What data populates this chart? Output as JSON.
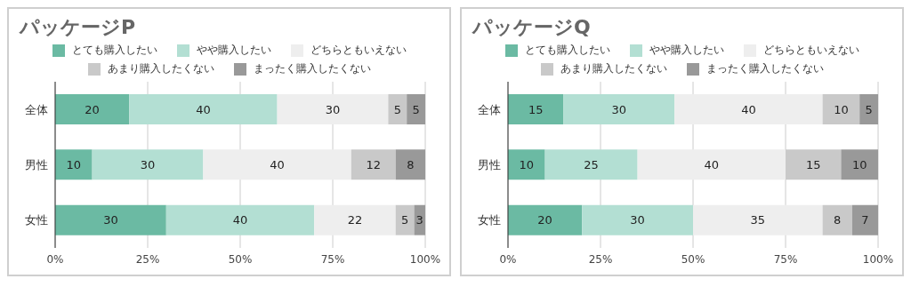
{
  "chart_data": [
    {
      "type": "bar",
      "title": "パッケージP",
      "orientation": "horizontal",
      "stacked": true,
      "categories": [
        "全体",
        "男性",
        "女性"
      ],
      "series": [
        {
          "name": "とても購入したい",
          "color": "#6bbaa3",
          "values": [
            20,
            10,
            30
          ]
        },
        {
          "name": "やや購入したい",
          "color": "#b3dfd3",
          "values": [
            40,
            30,
            40
          ]
        },
        {
          "name": "どちらともいえない",
          "color": "#eeeeee",
          "values": [
            30,
            40,
            22
          ]
        },
        {
          "name": "あまり購入したくない",
          "color": "#c9c9c9",
          "values": [
            5,
            12,
            5
          ]
        },
        {
          "name": "まったく購入したくない",
          "color": "#999999",
          "values": [
            5,
            8,
            3
          ]
        }
      ],
      "xlim": [
        0,
        100
      ],
      "xticks": [
        {
          "value": 0,
          "label": "0%"
        },
        {
          "value": 25,
          "label": "25%"
        },
        {
          "value": 50,
          "label": "50%"
        },
        {
          "value": 75,
          "label": "75%"
        },
        {
          "value": 100,
          "label": "100%"
        }
      ],
      "grid": "x",
      "legend": "top",
      "data_labels": true
    },
    {
      "type": "bar",
      "title": "パッケージQ",
      "orientation": "horizontal",
      "stacked": true,
      "categories": [
        "全体",
        "男性",
        "女性"
      ],
      "series": [
        {
          "name": "とても購入したい",
          "color": "#6bbaa3",
          "values": [
            15,
            10,
            20
          ]
        },
        {
          "name": "やや購入したい",
          "color": "#b3dfd3",
          "values": [
            30,
            25,
            30
          ]
        },
        {
          "name": "どちらともいえない",
          "color": "#eeeeee",
          "values": [
            40,
            40,
            35
          ]
        },
        {
          "name": "あまり購入したくない",
          "color": "#c9c9c9",
          "values": [
            10,
            15,
            8
          ]
        },
        {
          "name": "まったく購入したくない",
          "color": "#999999",
          "values": [
            5,
            10,
            7
          ]
        }
      ],
      "xlim": [
        0,
        100
      ],
      "xticks": [
        {
          "value": 0,
          "label": "0%"
        },
        {
          "value": 25,
          "label": "25%"
        },
        {
          "value": 50,
          "label": "50%"
        },
        {
          "value": 75,
          "label": "75%"
        },
        {
          "value": 100,
          "label": "100%"
        }
      ],
      "grid": "x",
      "legend": "top",
      "data_labels": true
    }
  ]
}
